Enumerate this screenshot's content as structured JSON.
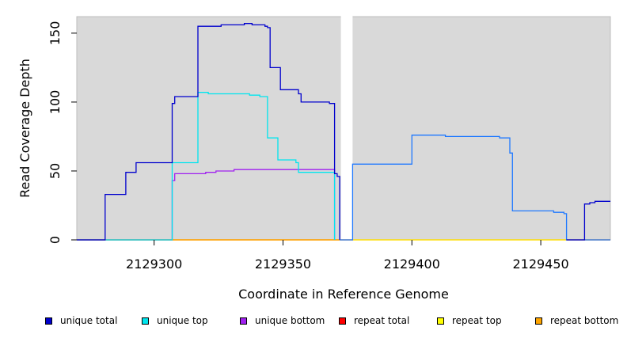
{
  "chart_data": {
    "type": "line",
    "title": "",
    "xlabel": "Coordinate in Reference Genome",
    "ylabel": "Read Coverage Depth",
    "xlim": [
      2129270,
      2129477
    ],
    "ylim": [
      0,
      162
    ],
    "xticks": [
      2129300,
      2129350,
      2129400,
      2129450
    ],
    "yticks": [
      0,
      50,
      100,
      150
    ],
    "grid": false,
    "background": "#d9d9d9",
    "gap": [
      2129372,
      2129377
    ],
    "legend_position": "bottom",
    "series": [
      {
        "name": "unique total",
        "color": "#0000cd",
        "points": [
          [
            2129270,
            0
          ],
          [
            2129281,
            0
          ],
          [
            2129281,
            33
          ],
          [
            2129289,
            33
          ],
          [
            2129289,
            49
          ],
          [
            2129293,
            49
          ],
          [
            2129293,
            56
          ],
          [
            2129307,
            56
          ],
          [
            2129307,
            99
          ],
          [
            2129308,
            99
          ],
          [
            2129308,
            104
          ],
          [
            2129317,
            104
          ],
          [
            2129317,
            155
          ],
          [
            2129326,
            155
          ],
          [
            2129326,
            156
          ],
          [
            2129335,
            156
          ],
          [
            2129335,
            157
          ],
          [
            2129338,
            157
          ],
          [
            2129338,
            156
          ],
          [
            2129343,
            156
          ],
          [
            2129343,
            155
          ],
          [
            2129344,
            155
          ],
          [
            2129344,
            154
          ],
          [
            2129345,
            154
          ],
          [
            2129345,
            125
          ],
          [
            2129349,
            125
          ],
          [
            2129349,
            109
          ],
          [
            2129356,
            109
          ],
          [
            2129356,
            106
          ],
          [
            2129357,
            106
          ],
          [
            2129357,
            100
          ],
          [
            2129368,
            100
          ],
          [
            2129368,
            99
          ],
          [
            2129370,
            99
          ],
          [
            2129370,
            48
          ],
          [
            2129371,
            48
          ],
          [
            2129371,
            46
          ],
          [
            2129372,
            46
          ],
          [
            2129372,
            0
          ]
        ]
      },
      {
        "name": "unique top",
        "color": "#00e5ee",
        "points": [
          [
            2129270,
            0
          ],
          [
            2129307,
            0
          ],
          [
            2129307,
            56
          ],
          [
            2129317,
            56
          ],
          [
            2129317,
            107
          ],
          [
            2129321,
            107
          ],
          [
            2129321,
            106
          ],
          [
            2129337,
            106
          ],
          [
            2129337,
            105
          ],
          [
            2129341,
            105
          ],
          [
            2129341,
            104
          ],
          [
            2129344,
            104
          ],
          [
            2129344,
            74
          ],
          [
            2129348,
            74
          ],
          [
            2129348,
            58
          ],
          [
            2129355,
            58
          ],
          [
            2129355,
            56
          ],
          [
            2129356,
            56
          ],
          [
            2129356,
            49
          ],
          [
            2129370,
            49
          ],
          [
            2129370,
            0
          ]
        ]
      },
      {
        "name": "unique bottom",
        "color": "#a020f0",
        "points": [
          [
            2129270,
            0
          ],
          [
            2129307,
            0
          ],
          [
            2129307,
            43
          ],
          [
            2129308,
            43
          ],
          [
            2129308,
            48
          ],
          [
            2129320,
            48
          ],
          [
            2129320,
            49
          ],
          [
            2129324,
            49
          ],
          [
            2129324,
            50
          ],
          [
            2129331,
            50
          ],
          [
            2129331,
            51
          ],
          [
            2129370,
            51
          ],
          [
            2129370,
            0
          ]
        ]
      },
      {
        "name": "repeat total",
        "color": "#ff0000",
        "points": [
          [
            2129270,
            0
          ],
          [
            2129477,
            0
          ]
        ]
      },
      {
        "name": "repeat top",
        "color": "#ffff00",
        "points": [
          [
            2129270,
            0
          ],
          [
            2129477,
            0
          ]
        ]
      },
      {
        "name": "repeat bottom",
        "color": "#ffa500",
        "points": [
          [
            2129270,
            0
          ],
          [
            2129372,
            0
          ]
        ]
      },
      {
        "name": "",
        "color": "#1e78ff",
        "points": [
          [
            2129372,
            0
          ],
          [
            2129377,
            0
          ],
          [
            2129377,
            55
          ],
          [
            2129400,
            55
          ],
          [
            2129400,
            76
          ],
          [
            2129413,
            76
          ],
          [
            2129413,
            75
          ],
          [
            2129434,
            75
          ],
          [
            2129434,
            74
          ],
          [
            2129438,
            74
          ],
          [
            2129438,
            63
          ],
          [
            2129439,
            63
          ],
          [
            2129439,
            21
          ],
          [
            2129455,
            21
          ],
          [
            2129455,
            20
          ],
          [
            2129459,
            20
          ],
          [
            2129459,
            19
          ],
          [
            2129460,
            19
          ],
          [
            2129460,
            0
          ],
          [
            2129477,
            0
          ]
        ]
      },
      {
        "name": "",
        "color": "#0000cd",
        "points": [
          [
            2129460,
            0
          ],
          [
            2129467,
            0
          ],
          [
            2129467,
            26
          ],
          [
            2129469,
            26
          ],
          [
            2129469,
            27
          ],
          [
            2129471,
            27
          ],
          [
            2129471,
            28
          ],
          [
            2129477,
            28
          ]
        ]
      }
    ]
  }
}
